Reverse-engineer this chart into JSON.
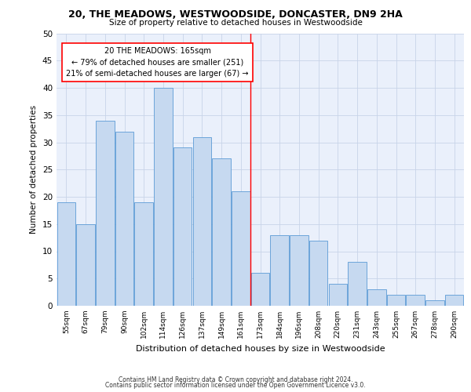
{
  "title1": "20, THE MEADOWS, WESTWOODSIDE, DONCASTER, DN9 2HA",
  "title2": "Size of property relative to detached houses in Westwoodside",
  "xlabel": "Distribution of detached houses by size in Westwoodside",
  "ylabel": "Number of detached properties",
  "categories": [
    "55sqm",
    "67sqm",
    "79sqm",
    "90sqm",
    "102sqm",
    "114sqm",
    "126sqm",
    "137sqm",
    "149sqm",
    "161sqm",
    "173sqm",
    "184sqm",
    "196sqm",
    "208sqm",
    "220sqm",
    "231sqm",
    "243sqm",
    "255sqm",
    "267sqm",
    "278sqm",
    "290sqm"
  ],
  "values": [
    19,
    15,
    34,
    32,
    19,
    40,
    29,
    31,
    27,
    21,
    6,
    13,
    13,
    12,
    4,
    8,
    3,
    2,
    2,
    1,
    2
  ],
  "bar_color": "#c6d9f0",
  "bar_edge_color": "#5b9bd5",
  "grid_color": "#c8d4e8",
  "vline_x_index": 9.5,
  "vline_color": "red",
  "annotation_line1": "20 THE MEADOWS: 165sqm",
  "annotation_line2": "← 79% of detached houses are smaller (251)",
  "annotation_line3": "21% of semi-detached houses are larger (67) →",
  "annotation_box_color": "white",
  "annotation_box_edge_color": "red",
  "ylim": [
    0,
    50
  ],
  "yticks": [
    0,
    5,
    10,
    15,
    20,
    25,
    30,
    35,
    40,
    45,
    50
  ],
  "background_color": "#eaf0fb",
  "footer1": "Contains HM Land Registry data © Crown copyright and database right 2024.",
  "footer2": "Contains public sector information licensed under the Open Government Licence v3.0."
}
